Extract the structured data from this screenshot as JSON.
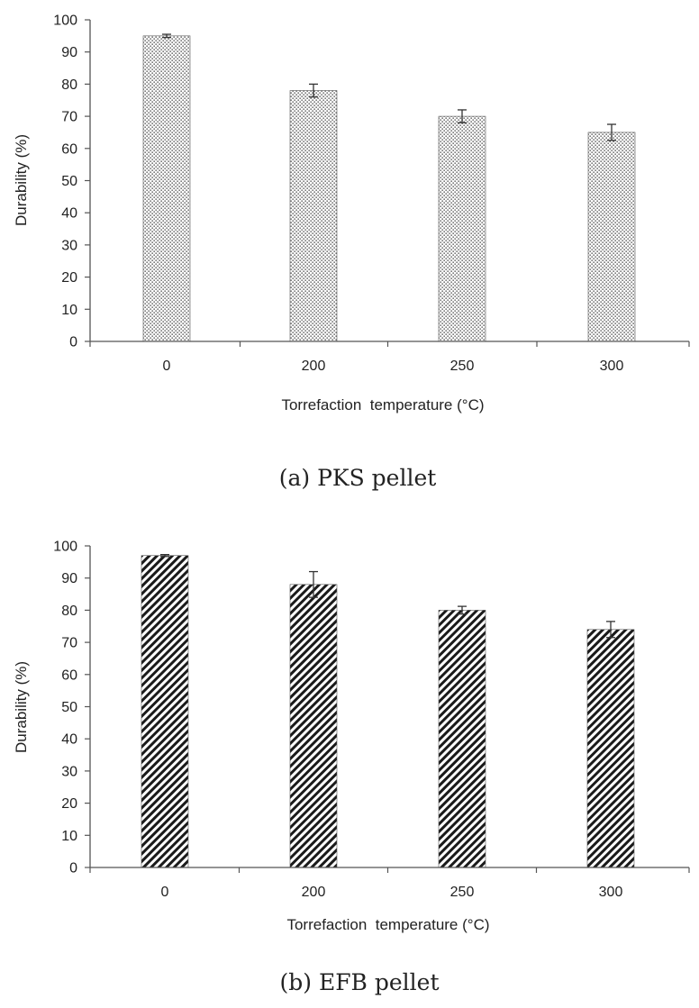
{
  "chart_data": [
    {
      "type": "bar",
      "panel": "a",
      "caption": "(a) PKS pellet",
      "categories": [
        "0",
        "200",
        "250",
        "300"
      ],
      "values": [
        95,
        78,
        70,
        65
      ],
      "error": [
        0.5,
        2,
        2,
        2.5
      ],
      "xlabel": "Torrefaction  temperature (°C)",
      "ylabel": "Durability (%)",
      "ylim": [
        0,
        100
      ],
      "yticks": [
        0,
        10,
        20,
        30,
        40,
        50,
        60,
        70,
        80,
        90,
        100
      ],
      "grid": false,
      "fill_pattern": "dots"
    },
    {
      "type": "bar",
      "panel": "b",
      "caption": "(b) EFB pellet",
      "categories": [
        "0",
        "200",
        "250",
        "300"
      ],
      "values": [
        97,
        88,
        80,
        74
      ],
      "error": [
        0.3,
        4,
        1.2,
        2.5
      ],
      "xlabel": "Torrefaction  temperature (°C)",
      "ylabel": "Durability (%)",
      "ylim": [
        0,
        100
      ],
      "yticks": [
        0,
        10,
        20,
        30,
        40,
        50,
        60,
        70,
        80,
        90,
        100
      ],
      "grid": false,
      "fill_pattern": "diagonal-hatch"
    }
  ]
}
